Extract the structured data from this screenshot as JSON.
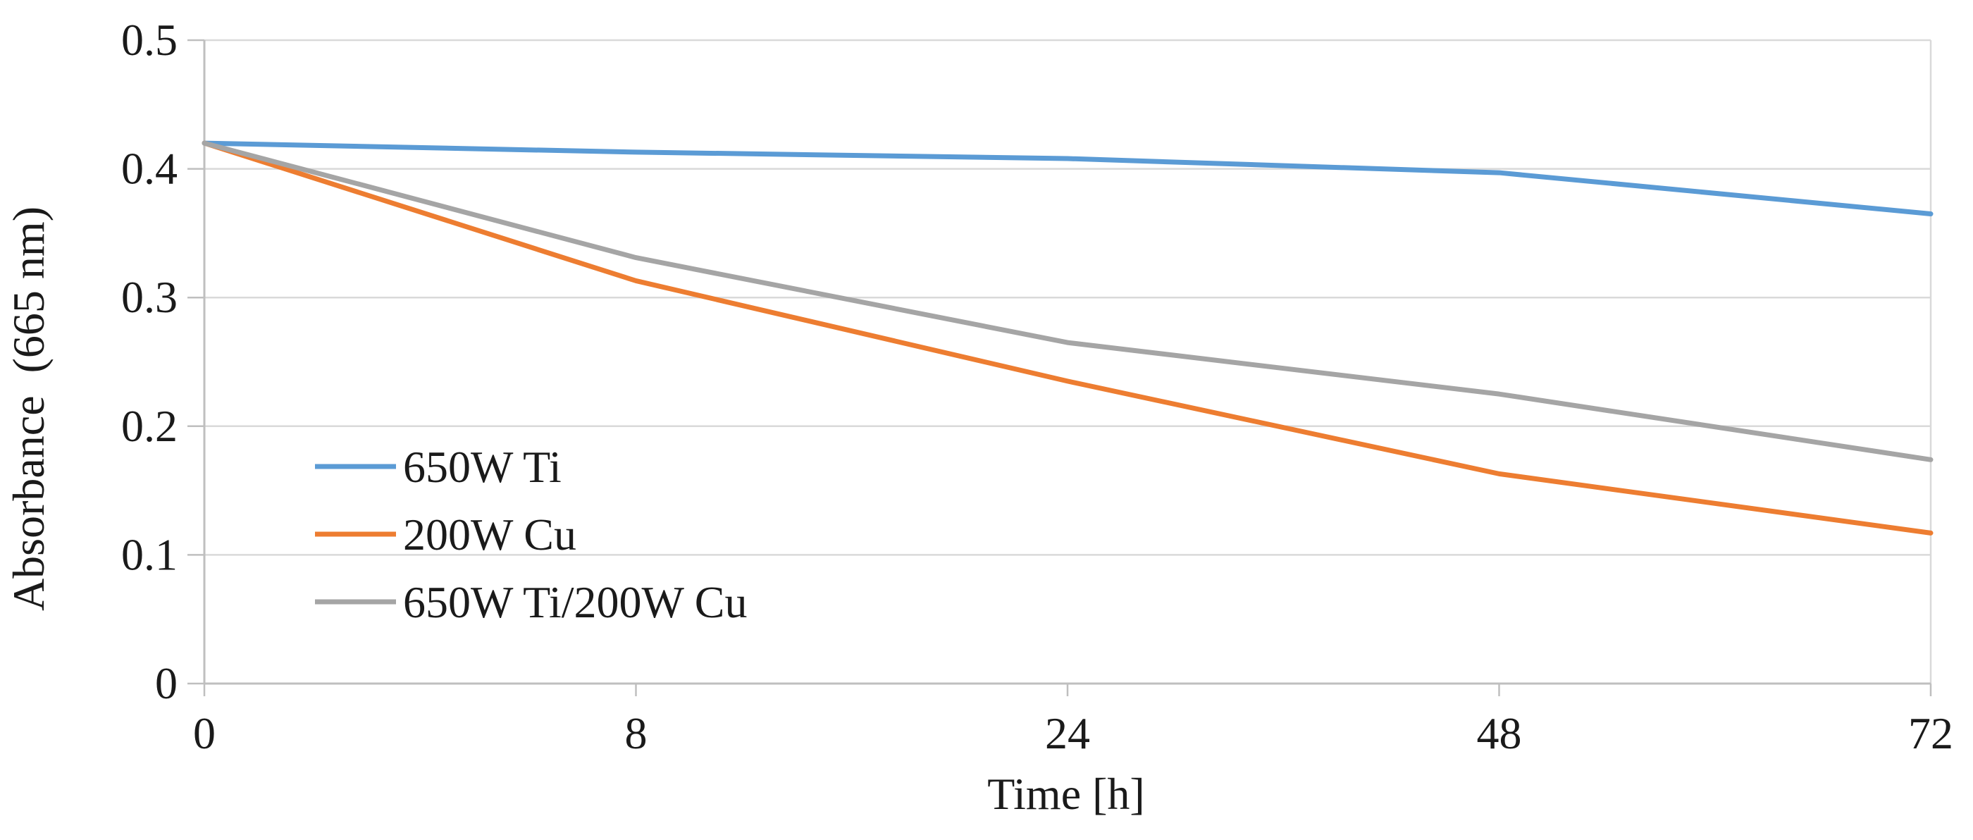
{
  "chart_data": {
    "type": "line",
    "title": "",
    "xlabel": "Time [h]",
    "ylabel": "Absorbance  (665 nm)",
    "categories": [
      "0",
      "8",
      "24",
      "48",
      "72"
    ],
    "ylim": [
      0,
      0.5
    ],
    "yticks": [
      0,
      0.1,
      0.2,
      0.3,
      0.4,
      0.5
    ],
    "ytick_labels": [
      "0",
      "0.1",
      "0.2",
      "0.3",
      "0.4",
      "0.5"
    ],
    "grid": "horizontal",
    "legend_position": "bottom-left",
    "series": [
      {
        "name": "650W Ti",
        "color": "#5B9BD5",
        "values": [
          0.42,
          0.413,
          0.408,
          0.397,
          0.365
        ]
      },
      {
        "name": "200W Cu",
        "color": "#ED7D31",
        "values": [
          0.42,
          0.313,
          0.235,
          0.163,
          0.117
        ]
      },
      {
        "name": "650W Ti/200W Cu",
        "color": "#A5A5A5",
        "values": [
          0.42,
          0.331,
          0.265,
          0.225,
          0.174
        ]
      }
    ]
  }
}
